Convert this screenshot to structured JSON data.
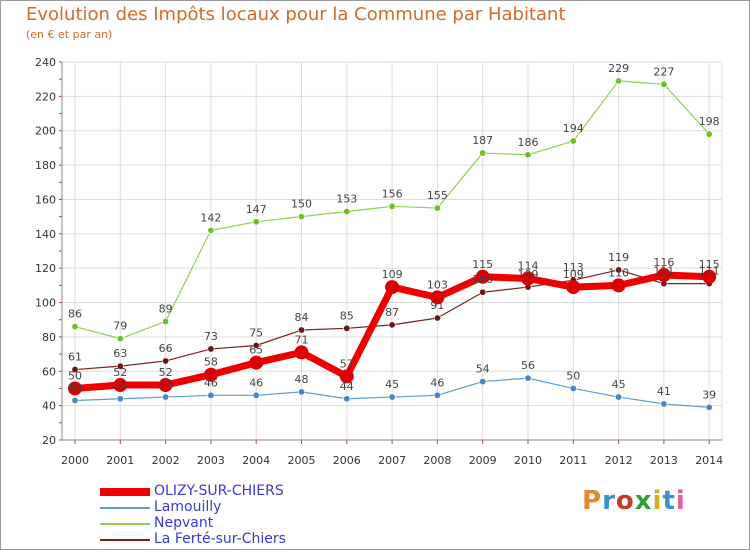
{
  "header": {
    "title": "Evolution des Impôts locaux pour la Commune par Habitant",
    "subtitle": "(en € et par an)"
  },
  "logo": {
    "text": "Proxiti",
    "colors": [
      "#e8892b",
      "#3b8fd1",
      "#c83a2a",
      "#2f9e3a",
      "#d4b01f",
      "#3b8fd1",
      "#e05f9c"
    ]
  },
  "chart_data": {
    "type": "line",
    "x": [
      "2000",
      "2001",
      "2002",
      "2003",
      "2004",
      "2005",
      "2006",
      "2007",
      "2008",
      "2009",
      "2010",
      "2011",
      "2012",
      "2013",
      "2014"
    ],
    "ylim": [
      20,
      240
    ],
    "yticks": [
      20,
      40,
      60,
      80,
      100,
      120,
      140,
      160,
      180,
      200,
      220,
      240
    ],
    "grid": true,
    "legend": "bottom-left",
    "series": [
      {
        "name": "OLIZY-SUR-CHIERS",
        "color": "#ee0000",
        "values": [
          50,
          52,
          52,
          58,
          65,
          71,
          57,
          109,
          103,
          115,
          114,
          109,
          110,
          116,
          115
        ]
      },
      {
        "name": "Lamouilly",
        "color": "#5b9bd5",
        "values": [
          43,
          44,
          45,
          46,
          46,
          48,
          44,
          45,
          46,
          54,
          56,
          50,
          45,
          41,
          39
        ]
      },
      {
        "name": "Nepvant",
        "color": "#92d050",
        "values": [
          86,
          79,
          89,
          142,
          147,
          150,
          153,
          156,
          155,
          187,
          186,
          194,
          229,
          227,
          198
        ]
      },
      {
        "name": "La Ferté-sur-Chiers",
        "color": "#7b2020",
        "values": [
          61,
          63,
          66,
          73,
          75,
          84,
          85,
          87,
          91,
          106,
          109,
          113,
          119,
          111,
          111
        ]
      }
    ]
  }
}
